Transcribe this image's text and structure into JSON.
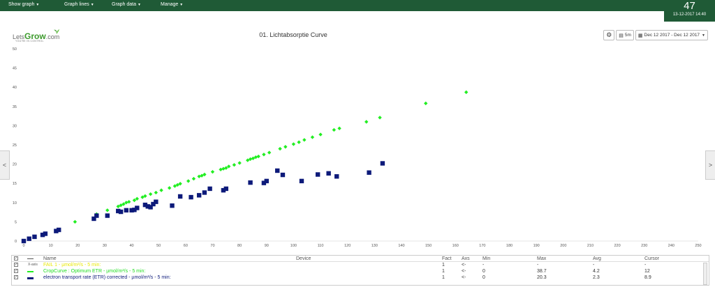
{
  "topbar": {
    "menus": [
      "Show graph",
      "Graph lines",
      "Graph data",
      "Manage"
    ],
    "counter": "47",
    "datetime": "13-12-2017 14:40"
  },
  "logo": {
    "prefix": "Lets",
    "brand": "Grow",
    "suffix": ".com",
    "tagline": "YOU'RE IN CONTROL"
  },
  "chart": {
    "title": "01. Lichtabsorptie Curve"
  },
  "toolbar": {
    "interval": "5m",
    "daterange": "Dec 12 2017 - Dec 12 2017"
  },
  "nav": {
    "left": "<",
    "right": ">"
  },
  "colors": {
    "accent": "#1f5a36",
    "series_green": "#22ee22",
    "series_navy": "#0d1a7a",
    "series_yellow": "#e8e800"
  },
  "chart_data": {
    "type": "scatter",
    "xlim": [
      0,
      250
    ],
    "ylim": [
      0,
      50
    ],
    "x_ticks": [
      0,
      10,
      20,
      30,
      40,
      50,
      60,
      70,
      80,
      90,
      100,
      110,
      120,
      130,
      140,
      150,
      160,
      170,
      180,
      190,
      200,
      210,
      220,
      230,
      240,
      250
    ],
    "y_ticks": [
      0,
      5,
      10,
      15,
      20,
      25,
      30,
      35,
      40,
      45,
      50
    ],
    "grid": false,
    "series": [
      {
        "name": "CropCurve : Optimum ETR - µmol/m²/s - 5 min",
        "marker": "diamond",
        "color": "#22ee22",
        "points": [
          [
            19,
            5
          ],
          [
            27,
            7
          ],
          [
            31,
            8
          ],
          [
            35,
            9
          ],
          [
            36,
            9.3
          ],
          [
            37,
            9.6
          ],
          [
            38,
            10
          ],
          [
            39,
            10.2
          ],
          [
            41,
            10.6
          ],
          [
            42,
            11
          ],
          [
            44,
            11.4
          ],
          [
            45,
            11.7
          ],
          [
            47,
            12.2
          ],
          [
            49,
            12.6
          ],
          [
            51,
            13.2
          ],
          [
            54,
            13.8
          ],
          [
            56,
            14.3
          ],
          [
            57,
            14.6
          ],
          [
            58,
            14.9
          ],
          [
            61,
            15.6
          ],
          [
            63,
            16.2
          ],
          [
            65,
            16.8
          ],
          [
            66,
            17
          ],
          [
            67,
            17.3
          ],
          [
            70,
            18
          ],
          [
            73,
            18.6
          ],
          [
            74,
            18.8
          ],
          [
            75,
            19
          ],
          [
            76,
            19.4
          ],
          [
            78,
            19.8
          ],
          [
            80,
            20.3
          ],
          [
            83,
            21
          ],
          [
            84,
            21.3
          ],
          [
            85,
            21.5
          ],
          [
            86,
            21.8
          ],
          [
            87,
            22
          ],
          [
            89,
            22.5
          ],
          [
            91,
            23
          ],
          [
            95,
            24
          ],
          [
            97,
            24.5
          ],
          [
            100,
            25.2
          ],
          [
            102,
            25.7
          ],
          [
            104,
            26.3
          ],
          [
            107,
            27
          ],
          [
            110,
            27.7
          ],
          [
            115,
            28.9
          ],
          [
            117,
            29.3
          ],
          [
            127,
            31
          ],
          [
            132,
            32.1
          ],
          [
            149,
            35.8
          ],
          [
            164,
            38.7
          ]
        ]
      },
      {
        "name": "electron transport rate (ETR) corrected - µmol/m²/s - 5 min",
        "marker": "square",
        "color": "#0d1a7a",
        "points": [
          [
            0,
            0
          ],
          [
            2,
            0.6
          ],
          [
            4,
            1.1
          ],
          [
            7,
            1.6
          ],
          [
            8,
            1.9
          ],
          [
            12,
            2.6
          ],
          [
            13,
            2.9
          ],
          [
            26,
            5.8
          ],
          [
            27,
            6.6
          ],
          [
            31,
            6.6
          ],
          [
            35,
            7.8
          ],
          [
            36,
            7.6
          ],
          [
            38,
            8
          ],
          [
            40,
            8
          ],
          [
            41,
            8.1
          ],
          [
            42,
            8.6
          ],
          [
            45,
            9.4
          ],
          [
            46,
            9
          ],
          [
            47,
            8.8
          ],
          [
            48,
            9.6
          ],
          [
            49,
            10.2
          ],
          [
            55,
            9.2
          ],
          [
            58,
            11.6
          ],
          [
            62,
            11.4
          ],
          [
            65,
            11.9
          ],
          [
            67,
            12.6
          ],
          [
            69,
            13.6
          ],
          [
            74,
            13.2
          ],
          [
            75,
            13.6
          ],
          [
            84,
            15.2
          ],
          [
            89,
            15.1
          ],
          [
            90,
            15.6
          ],
          [
            94,
            18.3
          ],
          [
            96,
            17.2
          ],
          [
            103,
            15.6
          ],
          [
            109,
            17.3
          ],
          [
            113,
            17.6
          ],
          [
            116,
            16.8
          ],
          [
            128,
            17.8
          ],
          [
            133,
            20.2
          ]
        ]
      },
      {
        "name": "FAIL 1 - µmol/m²/s - 5 min",
        "marker": "none",
        "color": "#e8e800",
        "points": []
      }
    ]
  },
  "legend": {
    "headers": {
      "name": "Name",
      "device": "Device",
      "fact": "Fact",
      "axs": "Axs",
      "min": "Min",
      "max": "Max",
      "avg": "Avg",
      "cursor": "Cursor"
    },
    "xaxis_label": "X-axis",
    "rows": [
      {
        "name": "FAIL 1 - µmol/m²/s - 5 min:",
        "fact": "1",
        "axs": "<-",
        "min": "-",
        "max": "-",
        "avg": "-",
        "cursor": "-",
        "color": "#e8e800"
      },
      {
        "name": "CropCurve : Optimum ETR - µmol/m²/s - 5 min:",
        "fact": "1",
        "axs": "<-",
        "min": "0",
        "max": "38.7",
        "avg": "4.2",
        "cursor": "12",
        "color": "#22ee22"
      },
      {
        "name": "electron transport rate (ETR) corrected - µmol/m²/s - 5 min:",
        "fact": "1",
        "axs": "<-",
        "min": "0",
        "max": "20.3",
        "avg": "2.3",
        "cursor": "8.9",
        "color": "#0d1a7a"
      }
    ]
  }
}
